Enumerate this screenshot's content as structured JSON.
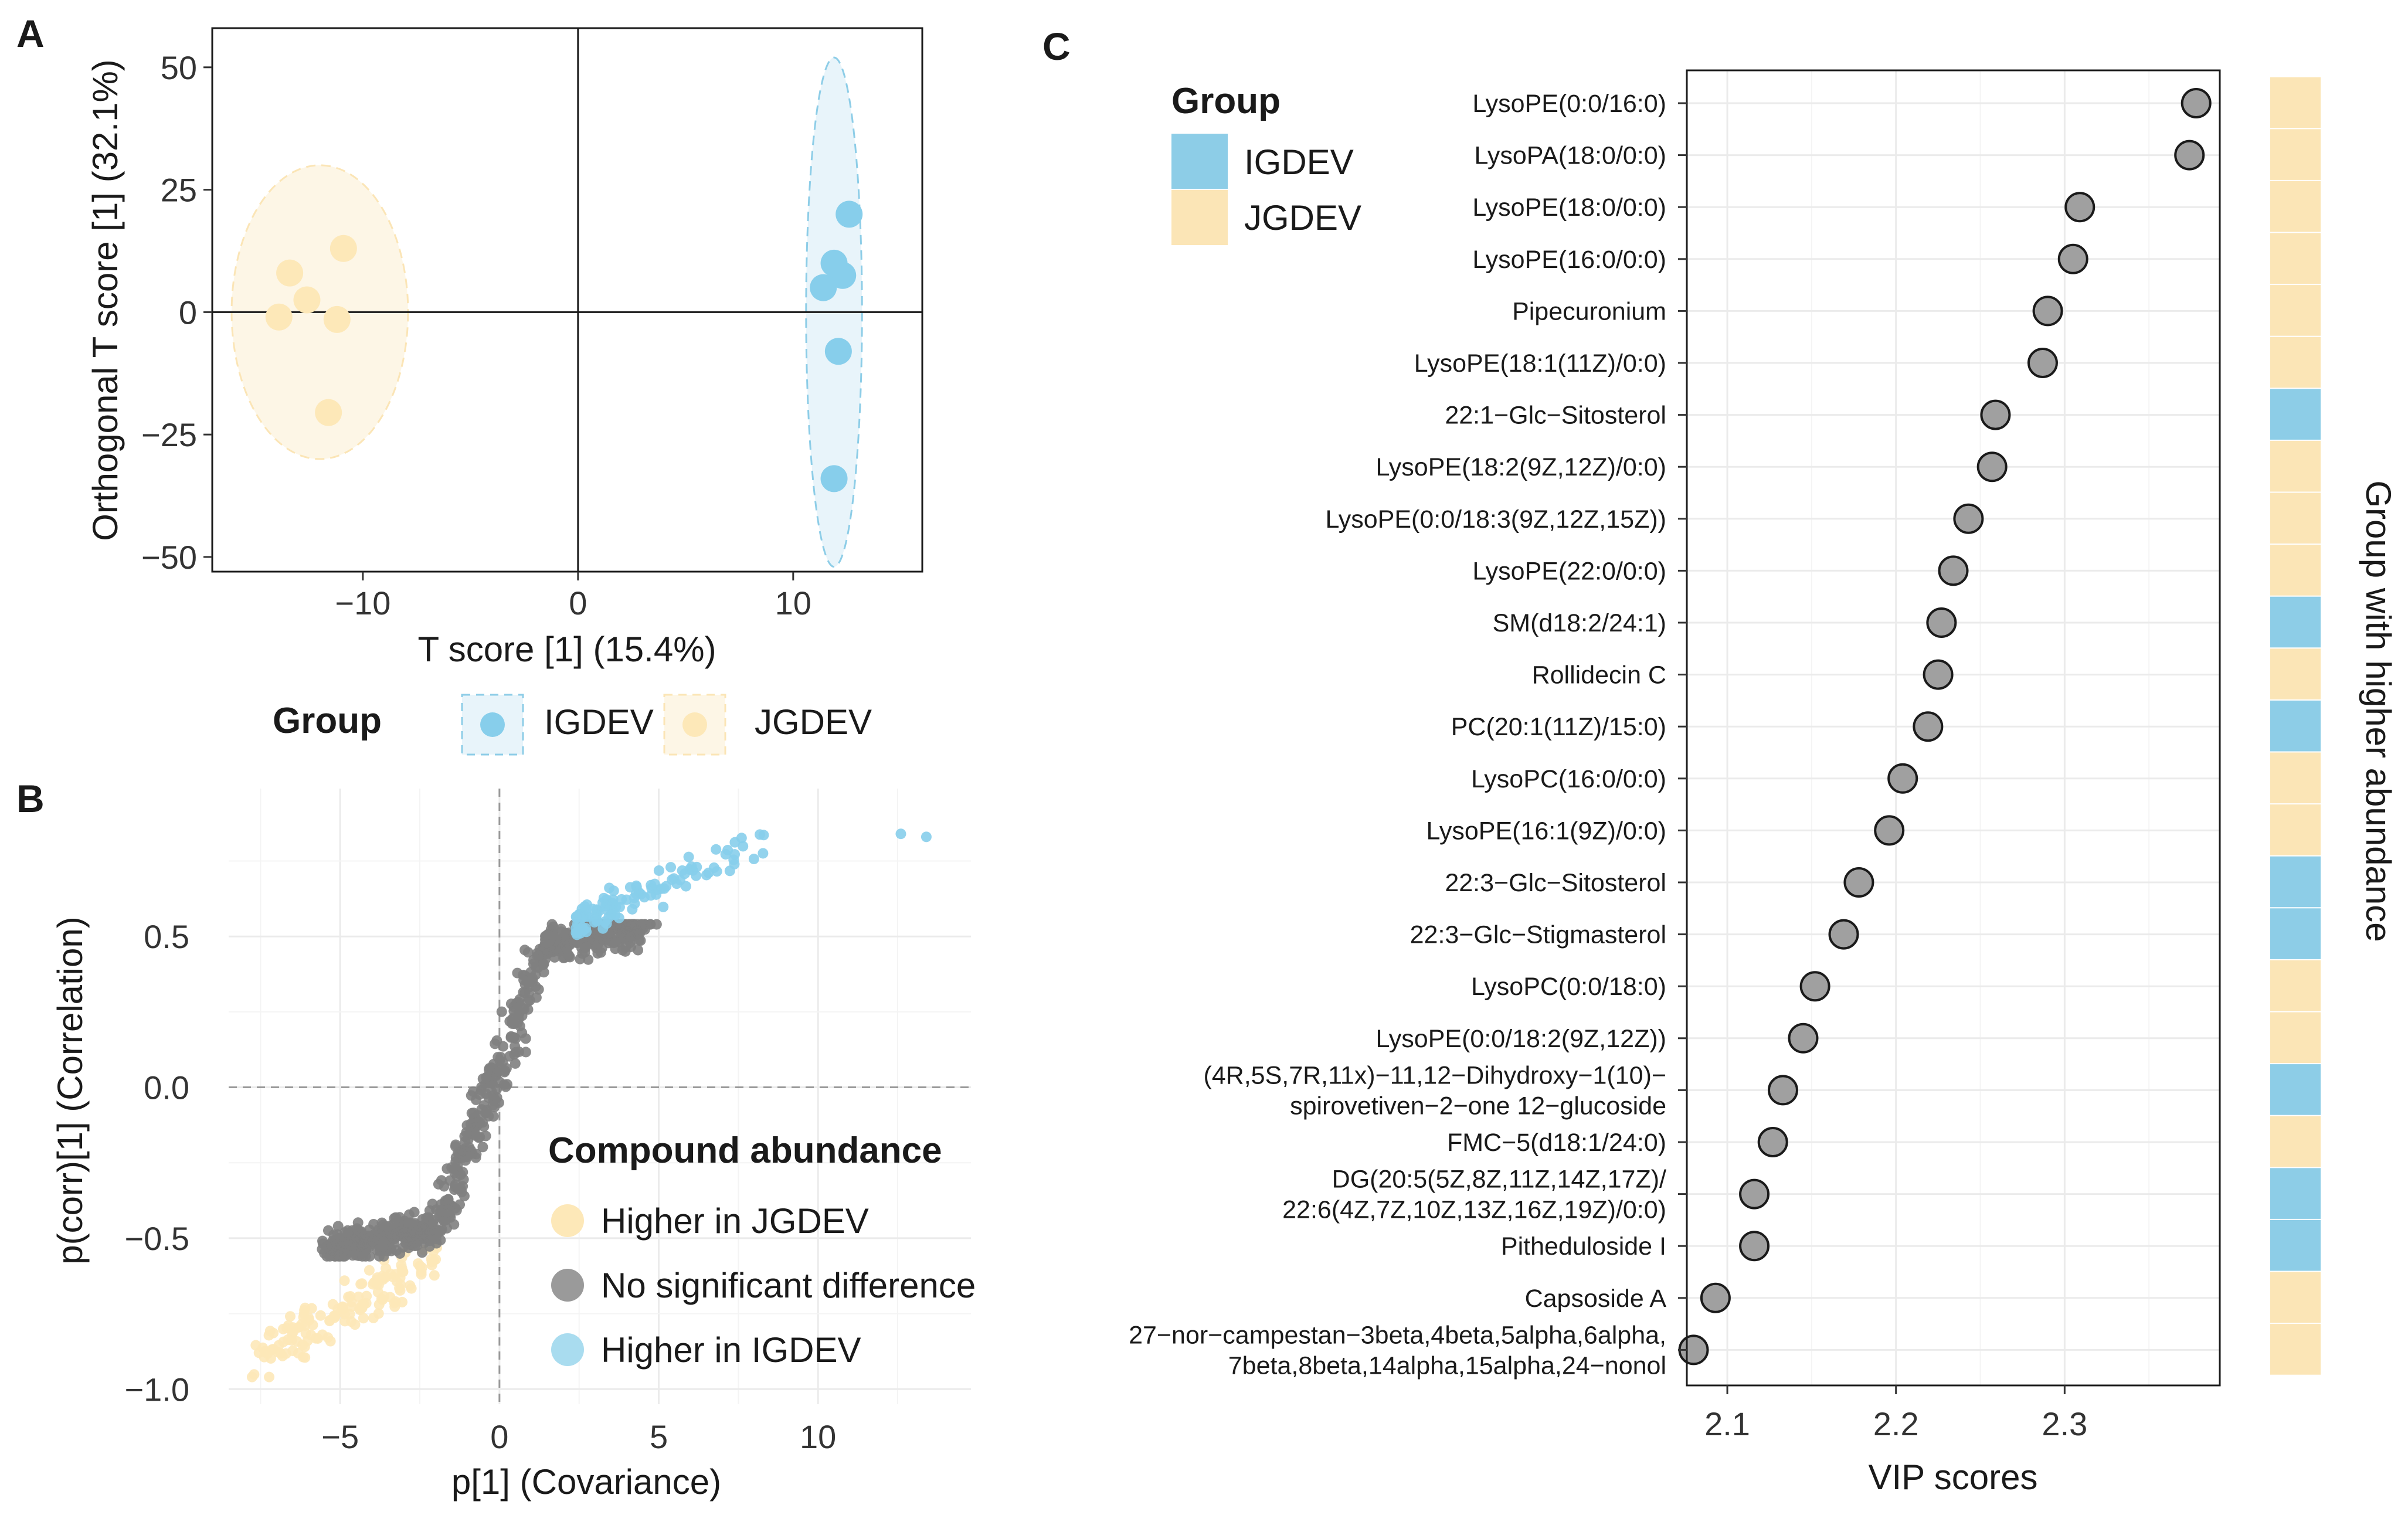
{
  "colors": {
    "igdev": "#8dcde7",
    "jgdev": "#fbe5b6",
    "igdev_point": "#87ceeb",
    "jgdev_point": "#fde8b8",
    "nosig": "#808080",
    "vip_point": "#a0a0a0"
  },
  "panel_labels": {
    "a": "A",
    "b": "B",
    "c": "C"
  },
  "chart_data": [
    {
      "id": "A",
      "type": "scatter",
      "title": "",
      "xlabel": "T score [1] (15.4%)",
      "ylabel": "Orthogonal T score [1] (32.1%)",
      "xlim": [
        -17,
        16
      ],
      "ylim": [
        -53,
        58
      ],
      "xticks": [
        -10,
        0,
        10
      ],
      "xtick_labels": [
        "−10",
        "0",
        "10"
      ],
      "yticks": [
        -50,
        -25,
        0,
        25,
        50
      ],
      "ytick_labels": [
        "−50",
        "−25",
        "0",
        "25",
        "50"
      ],
      "legend": {
        "title": "Group",
        "position": "bottom",
        "entries": [
          "IGDEV",
          "JGDEV"
        ]
      },
      "series": [
        {
          "name": "IGDEV",
          "points": [
            [
              12.6,
              20
            ],
            [
              11.9,
              10
            ],
            [
              12.3,
              7.5
            ],
            [
              11.4,
              5
            ],
            [
              12.1,
              -8
            ],
            [
              11.9,
              -34
            ]
          ],
          "ellipse": {
            "center": [
              11.9,
              0
            ],
            "semi_x": 1.3,
            "semi_y": 52
          }
        },
        {
          "name": "JGDEV",
          "points": [
            [
              -10.9,
              13
            ],
            [
              -13.4,
              8
            ],
            [
              -12.6,
              2.5
            ],
            [
              -13.9,
              -1
            ],
            [
              -11.2,
              -1.5
            ],
            [
              -11.6,
              -20.5
            ]
          ],
          "ellipse": {
            "center": [
              -12.0,
              0
            ],
            "semi_x": 4.1,
            "semi_y": 30
          }
        }
      ]
    },
    {
      "id": "B",
      "type": "scatter",
      "title": "",
      "xlabel": "p[1] (Covariance)",
      "ylabel": "p(corr)[1] (Correlation)",
      "xlim": [
        -8.5,
        14.8
      ],
      "ylim": [
        -1.05,
        0.99
      ],
      "xticks": [
        -5,
        0,
        5,
        10
      ],
      "xtick_labels": [
        "−5",
        "0",
        "5",
        "10"
      ],
      "yticks": [
        -1.0,
        -0.5,
        0.0,
        0.5
      ],
      "ytick_labels": [
        "−1.0",
        "−0.5",
        "0.0",
        "0.5"
      ],
      "legend": {
        "title": "Compound abundance",
        "position": "inside bottom-right",
        "entries": [
          "Higher in JGDEV",
          "No significant difference",
          "Higher in IGDEV"
        ]
      },
      "series": [
        {
          "name": "Higher in JGDEV",
          "description": "approx. 150 points",
          "x_range": [
            -7.9,
            -1.9
          ],
          "y_range": [
            -0.95,
            -0.55
          ]
        },
        {
          "name": "No significant difference",
          "description": "approx. 800 points",
          "x_range": [
            -5.5,
            4.5
          ],
          "y_range": [
            -0.54,
            0.54
          ]
        },
        {
          "name": "Higher in IGDEV",
          "description": "approx. 110 points",
          "x_range": [
            2.3,
            13.4
          ],
          "y_range": [
            0.5,
            0.86
          ]
        }
      ]
    },
    {
      "id": "C",
      "type": "dot",
      "title": "",
      "xlabel": "VIP scores",
      "ylabel": "",
      "xlim": [
        2.076,
        2.392
      ],
      "xticks": [
        2.1,
        2.2,
        2.3
      ],
      "xtick_labels": [
        "2.1",
        "2.2",
        "2.3"
      ],
      "legend": {
        "title": "Group",
        "position": "top-left",
        "entries": [
          "IGDEV",
          "JGDEV"
        ]
      },
      "side_bar_title": "Group with higher abundance",
      "items": [
        {
          "label": "LysoPE(0:0/16:0)",
          "vip": 2.378,
          "group": "JGDEV"
        },
        {
          "label": "LysoPA(18:0/0:0)",
          "vip": 2.374,
          "group": "JGDEV"
        },
        {
          "label": "LysoPE(18:0/0:0)",
          "vip": 2.309,
          "group": "JGDEV"
        },
        {
          "label": "LysoPE(16:0/0:0)",
          "vip": 2.305,
          "group": "JGDEV"
        },
        {
          "label": "Pipecuronium",
          "vip": 2.29,
          "group": "JGDEV"
        },
        {
          "label": "LysoPE(18:1(11Z)/0:0)",
          "vip": 2.287,
          "group": "JGDEV"
        },
        {
          "label": "22:1−Glc−Sitosterol",
          "vip": 2.259,
          "group": "IGDEV"
        },
        {
          "label": "LysoPE(18:2(9Z,12Z)/0:0)",
          "vip": 2.257,
          "group": "JGDEV"
        },
        {
          "label": "LysoPE(0:0/18:3(9Z,12Z,15Z))",
          "vip": 2.243,
          "group": "JGDEV"
        },
        {
          "label": "LysoPE(22:0/0:0)",
          "vip": 2.234,
          "group": "JGDEV"
        },
        {
          "label": "SM(d18:2/24:1)",
          "vip": 2.227,
          "group": "IGDEV"
        },
        {
          "label": "Rollidecin C",
          "vip": 2.225,
          "group": "JGDEV"
        },
        {
          "label": "PC(20:1(11Z)/15:0)",
          "vip": 2.219,
          "group": "IGDEV"
        },
        {
          "label": "LysoPC(16:0/0:0)",
          "vip": 2.204,
          "group": "JGDEV"
        },
        {
          "label": "LysoPE(16:1(9Z)/0:0)",
          "vip": 2.196,
          "group": "JGDEV"
        },
        {
          "label": "22:3−Glc−Sitosterol",
          "vip": 2.178,
          "group": "IGDEV"
        },
        {
          "label": "22:3−Glc−Stigmasterol",
          "vip": 2.169,
          "group": "IGDEV"
        },
        {
          "label": "LysoPC(0:0/18:0)",
          "vip": 2.152,
          "group": "JGDEV"
        },
        {
          "label": "LysoPE(0:0/18:2(9Z,12Z))",
          "vip": 2.145,
          "group": "JGDEV"
        },
        {
          "label": "(4R,5S,7R,11x)−11,12−Dihydroxy−1(10)−\nspirovetiven−2−one 12−glucoside",
          "vip": 2.133,
          "group": "IGDEV"
        },
        {
          "label": "FMC−5(d18:1/24:0)",
          "vip": 2.127,
          "group": "JGDEV"
        },
        {
          "label": "DG(20:5(5Z,8Z,11Z,14Z,17Z)/\n22:6(4Z,7Z,10Z,13Z,16Z,19Z)/0:0)",
          "vip": 2.116,
          "group": "IGDEV"
        },
        {
          "label": "Pitheduloside I",
          "vip": 2.116,
          "group": "IGDEV"
        },
        {
          "label": "Capsoside A",
          "vip": 2.093,
          "group": "JGDEV"
        },
        {
          "label": "27−nor−campestan−3beta,4beta,5alpha,6alpha,\n7beta,8beta,14alpha,15alpha,24−nonol",
          "vip": 2.08,
          "group": "JGDEV"
        }
      ]
    }
  ]
}
